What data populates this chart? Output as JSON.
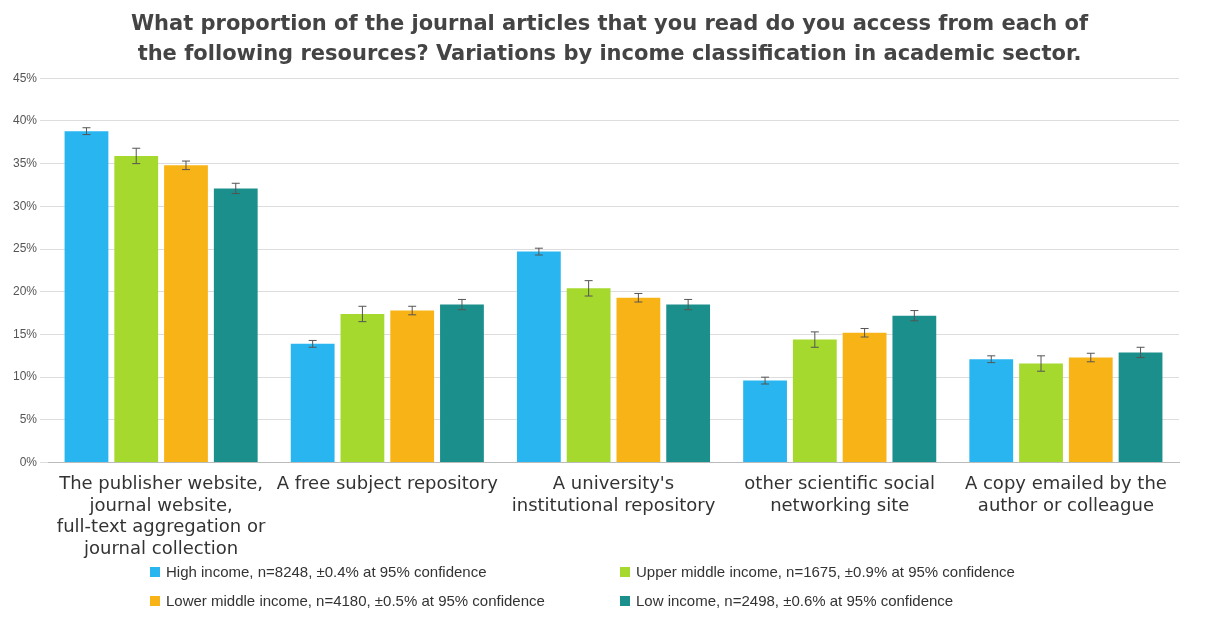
{
  "chart_data": {
    "type": "bar",
    "title": "What proportion of the journal articles that you read do you access from each of the following resources? Variations by income classification in academic sector.",
    "categories": [
      "The publisher website, journal website, full-text aggregation or journal collection",
      "A free subject repository",
      "A university's institutional repository",
      "other scientific social networking site",
      "A copy emailed by the author or colleague"
    ],
    "series": [
      {
        "name": "High income, n=8248, ±0.4% at 95% confidence",
        "color": "#29b6f0",
        "values": [
          38.8,
          13.9,
          24.7,
          9.6,
          12.1
        ],
        "errors": [
          0.4,
          0.4,
          0.4,
          0.4,
          0.4
        ]
      },
      {
        "name": "Upper middle income, n=1675, ±0.9% at 95% confidence",
        "color": "#a6d92e",
        "values": [
          35.9,
          17.4,
          20.4,
          14.4,
          11.6
        ],
        "errors": [
          0.9,
          0.9,
          0.9,
          0.9,
          0.9
        ]
      },
      {
        "name": "Lower middle income, n=4180, ±0.5% at 95% confidence",
        "color": "#f8b416",
        "values": [
          34.8,
          17.8,
          19.3,
          15.2,
          12.3
        ],
        "errors": [
          0.5,
          0.5,
          0.5,
          0.5,
          0.5
        ]
      },
      {
        "name": "Low income, n=2498, ±0.6% at 95% confidence",
        "color": "#1a8f8c",
        "values": [
          32.1,
          18.5,
          18.5,
          17.2,
          12.9
        ],
        "errors": [
          0.6,
          0.6,
          0.6,
          0.6,
          0.6
        ]
      }
    ],
    "ylim": [
      0,
      45
    ],
    "yticks": [
      {
        "value": 0,
        "label": "0%"
      },
      {
        "value": 5,
        "label": "5%"
      },
      {
        "value": 10,
        "label": "10%"
      },
      {
        "value": 15,
        "label": "15%"
      },
      {
        "value": 20,
        "label": "20%"
      },
      {
        "value": 25,
        "label": "25%"
      },
      {
        "value": 30,
        "label": "30%"
      },
      {
        "value": 35,
        "label": "35%"
      },
      {
        "value": 40,
        "label": "40%"
      },
      {
        "value": 45,
        "label": "45%"
      }
    ],
    "grid": "y",
    "legend": "bottom"
  }
}
